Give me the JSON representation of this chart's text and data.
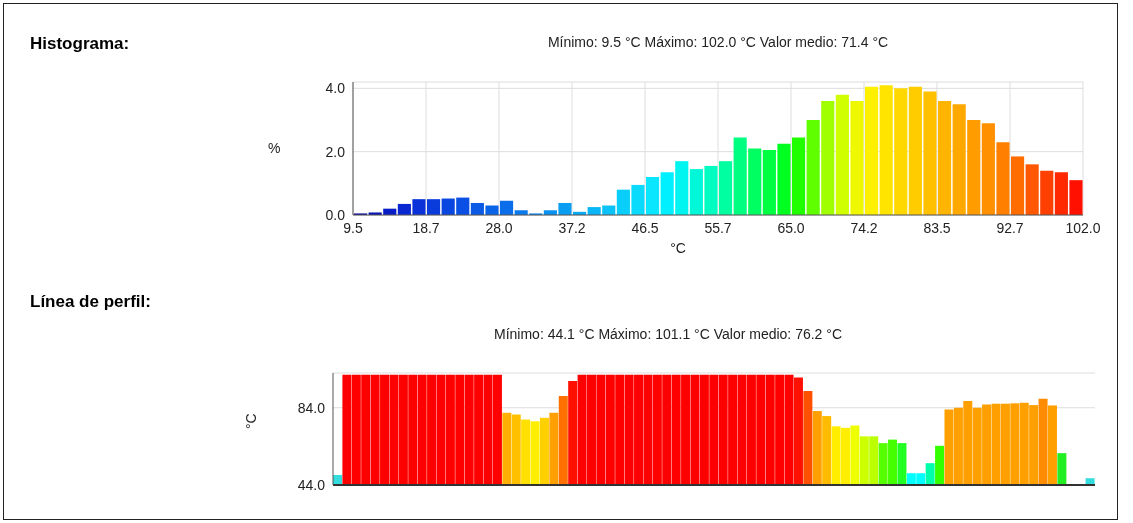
{
  "chart_data": [
    {
      "type": "histogram",
      "annotations": [
        "Histograma:"
      ],
      "title": "Mínimo: 9.5 °C Máximo: 102.0 °C Valor medio: 71.4 °C",
      "xlabel": "°C",
      "ylabel": "%",
      "bins": [
        9.5,
        11.35,
        13.2,
        15.05,
        16.9,
        18.75,
        20.6,
        22.45,
        24.3,
        26.15,
        28,
        29.85,
        31.7,
        33.55,
        35.4,
        37.25,
        39.1,
        40.95,
        42.8,
        44.65,
        46.5,
        48.35,
        50.2,
        52.05,
        53.9,
        55.75,
        57.6,
        59.45,
        61.3,
        63.15,
        65,
        66.85,
        68.7,
        70.55,
        72.4,
        74.25,
        76.1,
        77.95,
        79.8,
        81.65,
        83.5,
        85.35,
        87.2,
        89.05,
        90.9,
        92.75,
        94.6,
        96.45,
        98.3,
        100.15,
        102
      ],
      "values": [
        0.05,
        0.08,
        0.2,
        0.35,
        0.5,
        0.5,
        0.52,
        0.55,
        0.38,
        0.3,
        0.45,
        0.15,
        0.05,
        0.15,
        0.38,
        0.1,
        0.25,
        0.3,
        0.8,
        0.95,
        1.2,
        1.35,
        1.7,
        1.45,
        1.55,
        1.7,
        2.45,
        2.1,
        2.05,
        2.25,
        2.45,
        3.0,
        3.6,
        3.8,
        3.6,
        4.05,
        4.1,
        4.0,
        4.05,
        3.9,
        3.6,
        3.5,
        3.0,
        2.9,
        2.3,
        1.85,
        1.6,
        1.4,
        1.35,
        1.1
      ],
      "colors": [
        "#0a0aa0",
        "#0a14b4",
        "#0a1ec8",
        "#0a28d2",
        "#0a32d8",
        "#0a3cdc",
        "#0a46e0",
        "#0a50e4",
        "#0a5ae6",
        "#0a64e8",
        "#0a6eea",
        "#0a7aec",
        "#0a86ee",
        "#0a92f0",
        "#0a9ef2",
        "#0aaaf4",
        "#0ab6f6",
        "#0ac2f8",
        "#0acefa",
        "#0adafc",
        "#0ae6fe",
        "#00f0ff",
        "#00f4f0",
        "#00f8d8",
        "#00fcc0",
        "#00ffa0",
        "#00ff80",
        "#00ff60",
        "#00ff40",
        "#00ff20",
        "#20ff00",
        "#60ff00",
        "#a0ff00",
        "#d0ff00",
        "#f0f800",
        "#fff000",
        "#ffe400",
        "#ffd800",
        "#ffcc00",
        "#ffc000",
        "#ffb400",
        "#ffa800",
        "#ff9c00",
        "#ff9000",
        "#ff8000",
        "#ff6c00",
        "#ff5800",
        "#ff4000",
        "#ff2800",
        "#ff1000"
      ],
      "xlim": [
        9.5,
        102
      ],
      "xticks": [
        {
          "value": 9.5,
          "label": "9.5"
        },
        {
          "value": 18.75,
          "label": "18.7"
        },
        {
          "value": 28,
          "label": "28.0"
        },
        {
          "value": 37.25,
          "label": "37.2"
        },
        {
          "value": 46.5,
          "label": "46.5"
        },
        {
          "value": 55.75,
          "label": "55.7"
        },
        {
          "value": 65,
          "label": "65.0"
        },
        {
          "value": 74.25,
          "label": "74.2"
        },
        {
          "value": 83.5,
          "label": "83.5"
        },
        {
          "value": 92.75,
          "label": "92.7"
        },
        {
          "value": 102,
          "label": "102.0"
        }
      ],
      "ylim": [
        0,
        4.2
      ],
      "yticks": [
        {
          "value": 0,
          "label": "0.0"
        },
        {
          "value": 2,
          "label": "2.0"
        },
        {
          "value": 4,
          "label": "4.0"
        }
      ],
      "grid": true
    },
    {
      "type": "bar",
      "annotations": [
        "Línea de perfil:"
      ],
      "title": "Mínimo: 44.1 °C Máximo: 101.1 °C Valor medio: 76.2 °C",
      "ylabel": "°C",
      "categories": [
        null,
        null,
        null,
        null,
        null,
        null,
        null,
        null,
        null,
        null,
        null,
        null,
        null,
        null,
        null,
        null,
        null,
        null,
        null,
        null,
        null,
        null,
        null,
        null,
        null,
        null,
        null,
        null,
        null,
        null,
        null,
        null,
        null,
        null,
        null,
        null,
        null,
        null,
        null,
        null,
        null,
        null,
        null,
        null,
        null,
        null,
        null,
        null,
        null,
        null,
        null,
        null,
        null,
        null,
        null,
        null,
        null,
        null,
        null,
        null,
        null,
        null,
        null,
        null,
        null,
        null,
        null,
        null,
        null,
        null,
        null,
        null,
        null,
        null,
        null,
        null,
        null,
        null,
        null,
        null,
        null
      ],
      "values": [
        49.2,
        101.1,
        101.1,
        101.1,
        101.1,
        101.1,
        101.1,
        101.1,
        101.1,
        101.1,
        101.1,
        101.1,
        101.1,
        101.1,
        101.1,
        101.1,
        101.1,
        101.1,
        81.4,
        80.5,
        77.9,
        77.0,
        78.8,
        81.4,
        90.1,
        97.9,
        101.1,
        101.1,
        101.1,
        101.1,
        101.1,
        101.1,
        101.1,
        101.1,
        101.1,
        101.1,
        101.1,
        101.1,
        101.1,
        101.1,
        101.1,
        101.1,
        101.1,
        101.1,
        101.1,
        101.1,
        101.1,
        101.1,
        101.1,
        99.7,
        92.7,
        82.3,
        79.7,
        74.4,
        73.6,
        74.8,
        69.2,
        69.2,
        65.7,
        67.5,
        65.7,
        50.1,
        50.1,
        55.3,
        64.3,
        83.1,
        84.0,
        87.5,
        84.0,
        85.7,
        86.1,
        86.1,
        86.3,
        86.6,
        85.4,
        88.7,
        85.2,
        60.5,
        null,
        null,
        47.5
      ],
      "colors": [
        "#33dddd",
        "#ff0000",
        "#ff0000",
        "#ff0000",
        "#ff0000",
        "#ff0000",
        "#ff0000",
        "#ff0000",
        "#ff0000",
        "#ff0000",
        "#ff0000",
        "#ff0000",
        "#ff0000",
        "#ff0000",
        "#ff0000",
        "#ff0000",
        "#ff0000",
        "#ff0000",
        "#ffb000",
        "#ffc000",
        "#ffe000",
        "#ffee00",
        "#ffd000",
        "#ffa000",
        "#ff7000",
        "#ff1000",
        "#ff0000",
        "#ff0000",
        "#ff0000",
        "#ff0000",
        "#ff0000",
        "#ff0000",
        "#ff0000",
        "#ff0000",
        "#ff0000",
        "#ff0000",
        "#ff0000",
        "#ff0000",
        "#ff0000",
        "#ff0000",
        "#ff0000",
        "#ff0000",
        "#ff0000",
        "#ff0000",
        "#ff0000",
        "#ff0000",
        "#ff0000",
        "#ff0000",
        "#ff0000",
        "#ff1000",
        "#ff5000",
        "#ffa000",
        "#ffbb00",
        "#ffee00",
        "#ffee00",
        "#eeff00",
        "#ccff00",
        "#bbff00",
        "#55ff00",
        "#44ff00",
        "#22ff22",
        "#00ffff",
        "#00ffff",
        "#00ffaa",
        "#33ff00",
        "#ffa000",
        "#ffa000",
        "#ffa000",
        "#ffa000",
        "#ffa000",
        "#ffa000",
        "#ffa000",
        "#ffa000",
        "#ffa000",
        "#ffa000",
        "#ff8c00",
        "#ffa000",
        "#22ee22",
        "#33dddd",
        "#33dddd",
        "#33dddd"
      ],
      "ylim": [
        44,
        102
      ],
      "yticks": [
        {
          "value": 44,
          "label": "44.0"
        },
        {
          "value": 84,
          "label": "84.0"
        }
      ],
      "tick_labels": "y",
      "grid": "y"
    }
  ]
}
